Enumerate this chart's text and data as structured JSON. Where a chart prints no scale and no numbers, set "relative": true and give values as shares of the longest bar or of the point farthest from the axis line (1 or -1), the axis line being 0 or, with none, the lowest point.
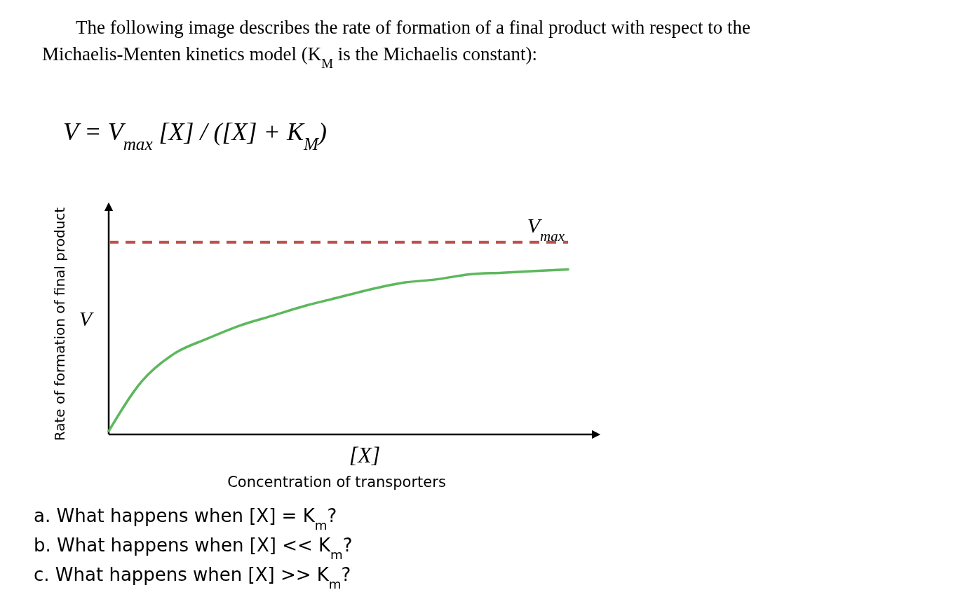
{
  "chart_data": {
    "type": "line",
    "relative": true,
    "title": "The following image describes the rate of formation of a final product with respect to the Michaelis-Menten kinetics model (K$_{M}$ is the Michaelis constant):",
    "xlabel": "Concentration of transporters",
    "ylabel": "Rate of formation of final product",
    "categories": [
      null,
      null,
      null,
      null,
      null,
      null,
      null,
      null,
      null,
      null,
      null,
      null,
      null,
      null,
      null
    ],
    "series": [
      {
        "color": "#5cb85c",
        "values": [
          0.02,
          0.32,
          0.49,
          0.58,
          0.66,
          0.72,
          0.78,
          0.83,
          0.88,
          0.92,
          0.94,
          0.97,
          0.98,
          0.99,
          1
        ]
      }
    ],
    "ref_lines": [
      {
        "axis": "y",
        "value": 1.165,
        "label": "V$_{max}$",
        "color": "#c0504d",
        "line_style": "dashed"
      }
    ],
    "annotations": [
      "V = V$_{max}$ [X] / ([X] + K$_{M}$)",
      "V",
      "[X]",
      "a.  What happens when [X] = K$_{m}$?",
      "b.  What happens when [X] << K$_{m}$?",
      "c.  What happens when [X] >> K$_{m}$?"
    ]
  }
}
